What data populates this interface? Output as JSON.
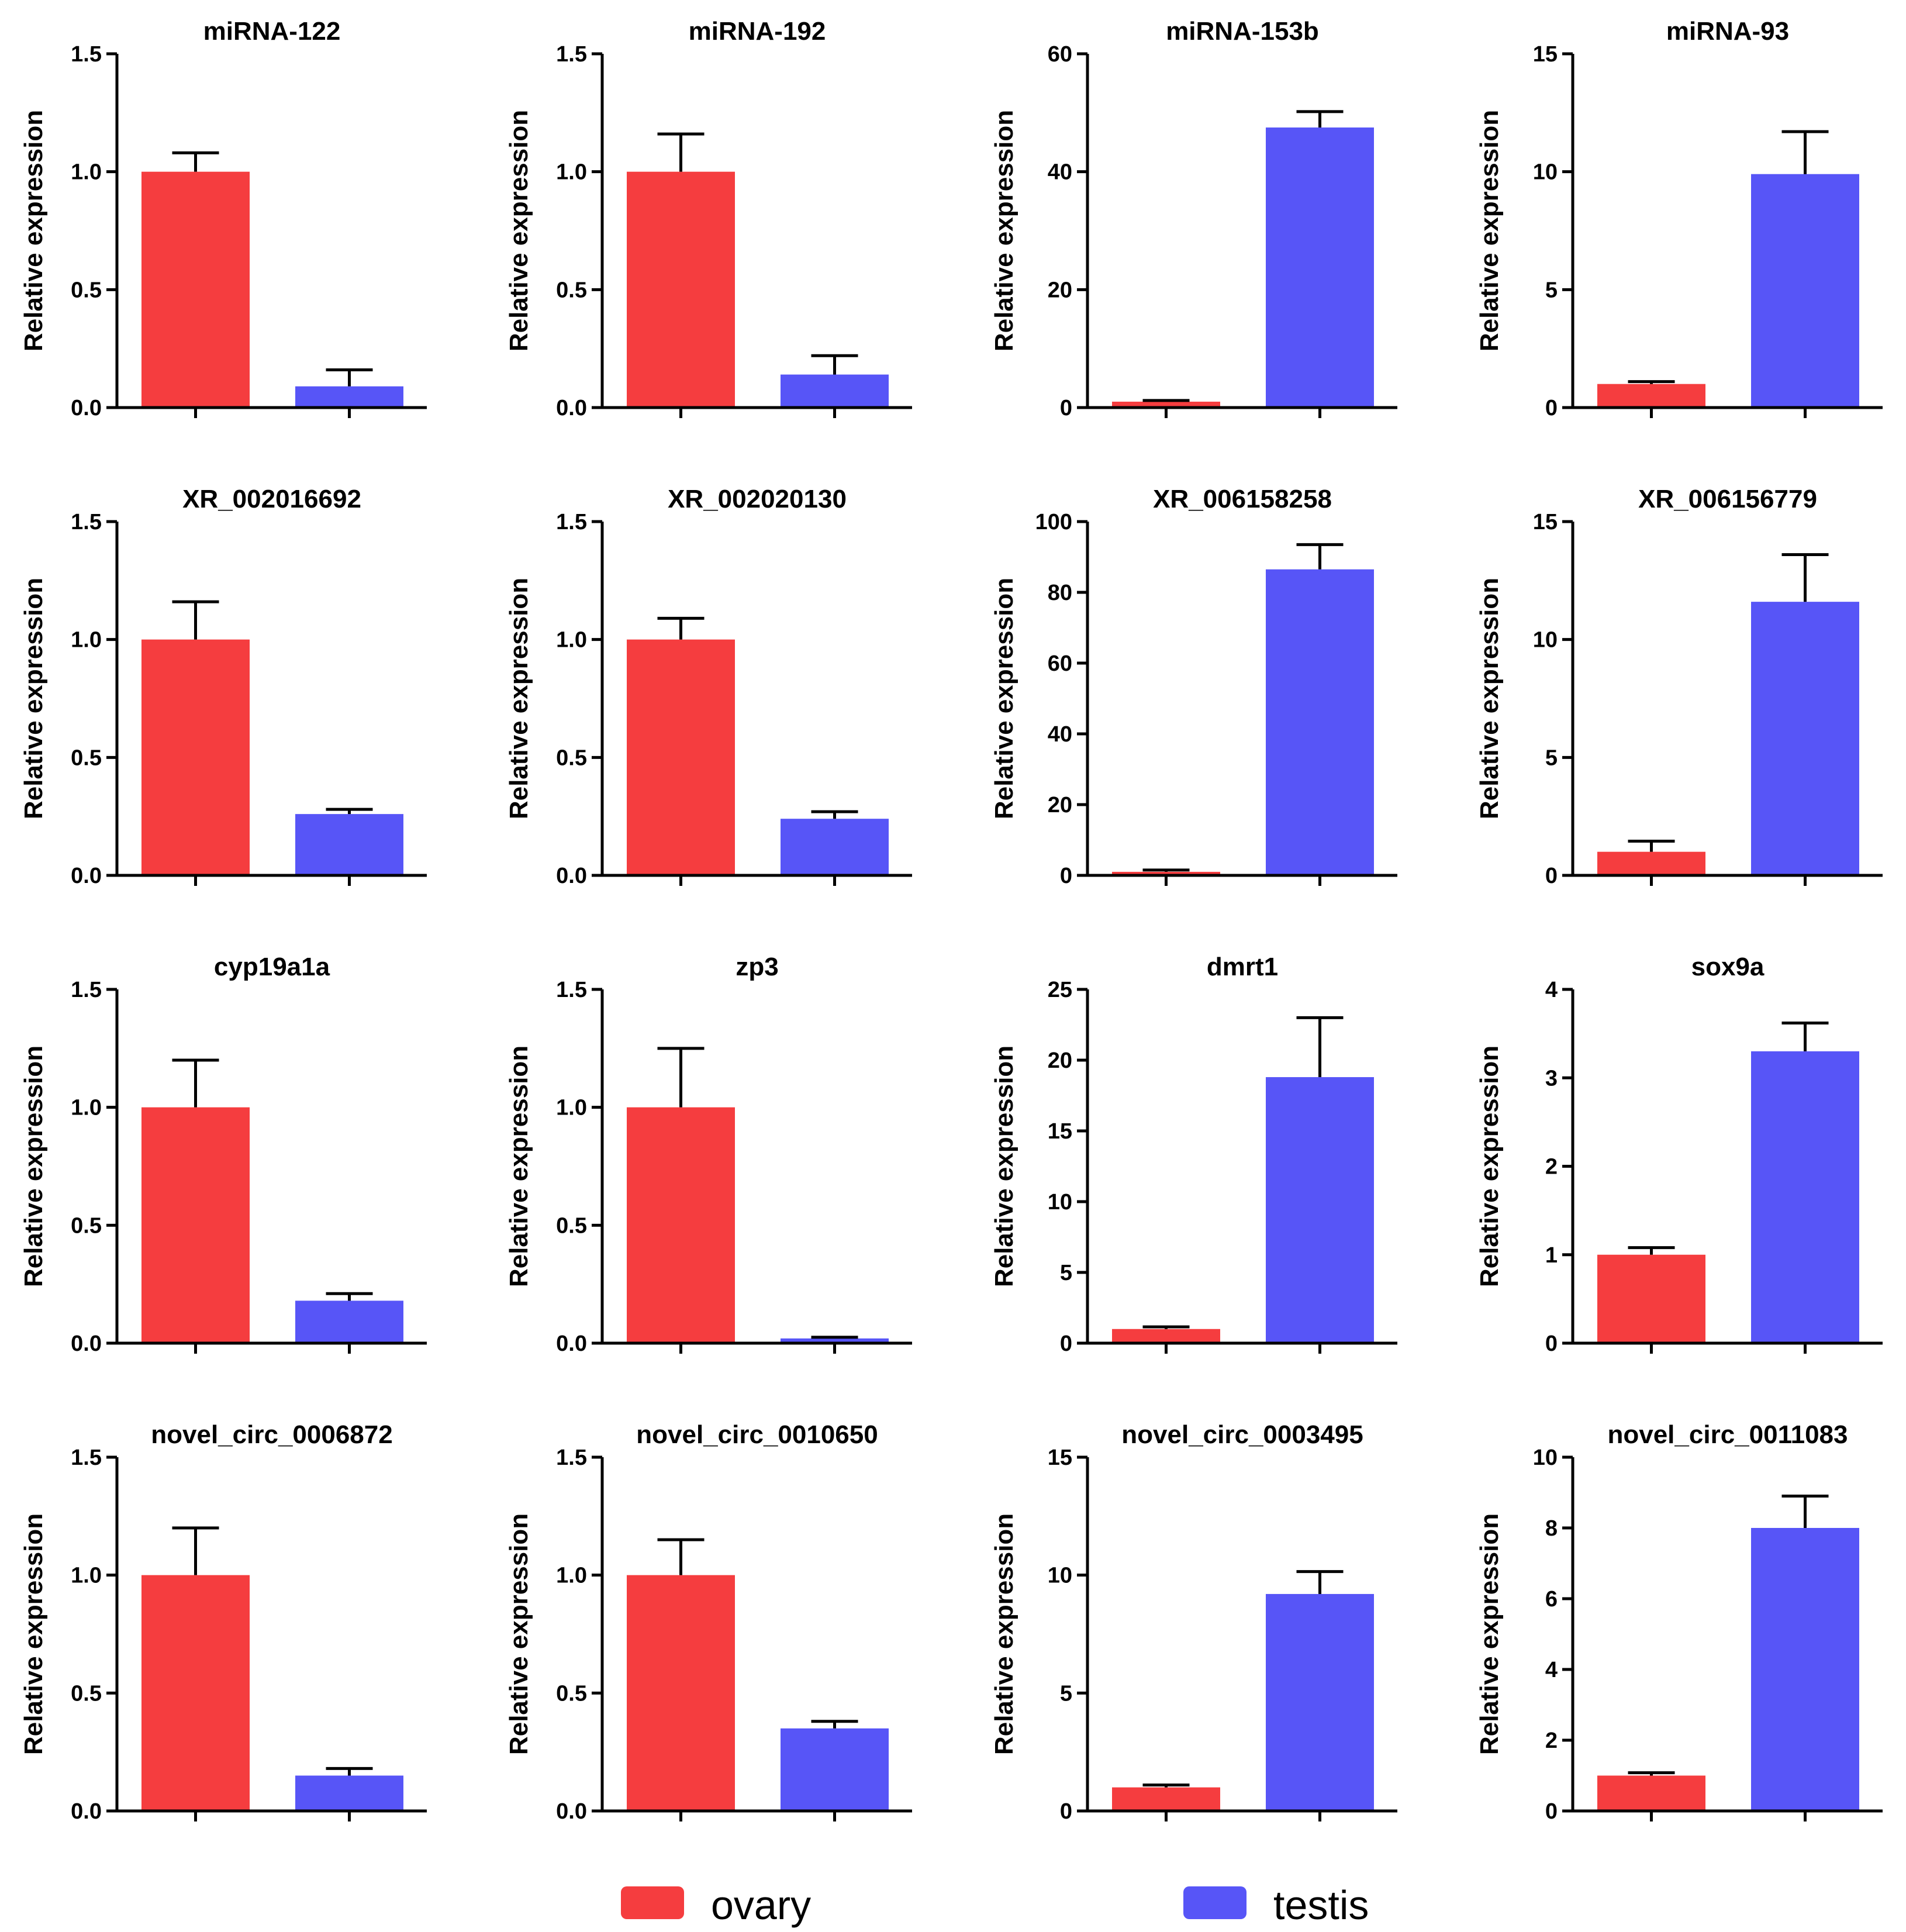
{
  "colors": {
    "ovary": "#f53d3f",
    "testis": "#5755f7",
    "axis": "#000000"
  },
  "legend": [
    {
      "name": "ovary",
      "color": "#f53d3f"
    },
    {
      "name": "testis",
      "color": "#5755f7"
    }
  ],
  "chart_data": [
    {
      "type": "bar",
      "title": "miRNA-122",
      "ylabel": "Relative expression",
      "categories": [
        "ovary",
        "testis"
      ],
      "values": [
        1.0,
        0.09
      ],
      "errors": [
        0.08,
        0.07
      ],
      "ylim": [
        0,
        1.5
      ],
      "yticks": [
        "0.0",
        "0.5",
        "1.0",
        "1.5"
      ],
      "yticks_values": [
        0,
        0.5,
        1.0,
        1.5
      ]
    },
    {
      "type": "bar",
      "title": "miRNA-192",
      "ylabel": "Relative expression",
      "categories": [
        "ovary",
        "testis"
      ],
      "values": [
        1.0,
        0.14
      ],
      "errors": [
        0.16,
        0.08
      ],
      "ylim": [
        0,
        1.5
      ],
      "yticks": [
        "0.0",
        "0.5",
        "1.0",
        "1.5"
      ],
      "yticks_values": [
        0,
        0.5,
        1.0,
        1.5
      ]
    },
    {
      "type": "bar",
      "title": "miRNA-153b",
      "ylabel": "Relative expression",
      "categories": [
        "ovary",
        "testis"
      ],
      "values": [
        1.0,
        47.5
      ],
      "errors": [
        0.2,
        2.7
      ],
      "ylim": [
        0,
        60
      ],
      "yticks": [
        "0",
        "20",
        "40",
        "60"
      ],
      "yticks_values": [
        0,
        20,
        40,
        60
      ]
    },
    {
      "type": "bar",
      "title": "miRNA-93",
      "ylabel": "Relative expression",
      "categories": [
        "ovary",
        "testis"
      ],
      "values": [
        1.0,
        9.9
      ],
      "errors": [
        0.1,
        1.8
      ],
      "ylim": [
        0,
        15
      ],
      "yticks": [
        "0",
        "5",
        "10",
        "15"
      ],
      "yticks_values": [
        0,
        5,
        10,
        15
      ]
    },
    {
      "type": "bar",
      "title": "XR_002016692",
      "ylabel": "Relative expression",
      "categories": [
        "ovary",
        "testis"
      ],
      "values": [
        1.0,
        0.26
      ],
      "errors": [
        0.16,
        0.02
      ],
      "ylim": [
        0,
        1.5
      ],
      "yticks": [
        "0.0",
        "0.5",
        "1.0",
        "1.5"
      ],
      "yticks_values": [
        0,
        0.5,
        1.0,
        1.5
      ]
    },
    {
      "type": "bar",
      "title": "XR_002020130",
      "ylabel": "Relative expression",
      "categories": [
        "ovary",
        "testis"
      ],
      "values": [
        1.0,
        0.24
      ],
      "errors": [
        0.09,
        0.03
      ],
      "ylim": [
        0,
        1.5
      ],
      "yticks": [
        "0.0",
        "0.5",
        "1.0",
        "1.5"
      ],
      "yticks_values": [
        0,
        0.5,
        1.0,
        1.5
      ]
    },
    {
      "type": "bar",
      "title": "XR_006158258",
      "ylabel": "Relative expression",
      "categories": [
        "ovary",
        "testis"
      ],
      "values": [
        1.0,
        86.5
      ],
      "errors": [
        0.5,
        7.0
      ],
      "ylim": [
        0,
        100
      ],
      "yticks": [
        "0",
        "20",
        "40",
        "60",
        "80",
        "100"
      ],
      "yticks_values": [
        0,
        20,
        40,
        60,
        80,
        100
      ]
    },
    {
      "type": "bar",
      "title": "XR_006156779",
      "ylabel": "Relative expression",
      "categories": [
        "ovary",
        "testis"
      ],
      "values": [
        1.0,
        11.6
      ],
      "errors": [
        0.45,
        2.0
      ],
      "ylim": [
        0,
        15
      ],
      "yticks": [
        "0",
        "5",
        "10",
        "15"
      ],
      "yticks_values": [
        0,
        5,
        10,
        15
      ]
    },
    {
      "type": "bar",
      "title": "cyp19a1a",
      "ylabel": "Relative expression",
      "categories": [
        "ovary",
        "testis"
      ],
      "values": [
        1.0,
        0.18
      ],
      "errors": [
        0.2,
        0.03
      ],
      "ylim": [
        0,
        1.5
      ],
      "yticks": [
        "0.0",
        "0.5",
        "1.0",
        "1.5"
      ],
      "yticks_values": [
        0,
        0.5,
        1.0,
        1.5
      ]
    },
    {
      "type": "bar",
      "title": "zp3",
      "ylabel": "Relative expression",
      "categories": [
        "ovary",
        "testis"
      ],
      "values": [
        1.0,
        0.02
      ],
      "errors": [
        0.25,
        0.005
      ],
      "ylim": [
        0,
        1.5
      ],
      "yticks": [
        "0.0",
        "0.5",
        "1.0",
        "1.5"
      ],
      "yticks_values": [
        0,
        0.5,
        1.0,
        1.5
      ]
    },
    {
      "type": "bar",
      "title": "dmrt1",
      "ylabel": "Relative expression",
      "categories": [
        "ovary",
        "testis"
      ],
      "values": [
        1.0,
        18.8
      ],
      "errors": [
        0.15,
        4.2
      ],
      "ylim": [
        0,
        25
      ],
      "yticks": [
        "0",
        "5",
        "10",
        "15",
        "20",
        "25"
      ],
      "yticks_values": [
        0,
        5,
        10,
        15,
        20,
        25
      ]
    },
    {
      "type": "bar",
      "title": "sox9a",
      "ylabel": "Relative expression",
      "categories": [
        "ovary",
        "testis"
      ],
      "values": [
        1.0,
        3.3
      ],
      "errors": [
        0.08,
        0.32
      ],
      "ylim": [
        0,
        4
      ],
      "yticks": [
        "0",
        "1",
        "2",
        "3",
        "4"
      ],
      "yticks_values": [
        0,
        1,
        2,
        3,
        4
      ]
    },
    {
      "type": "bar",
      "title": "novel_circ_0006872",
      "ylabel": "Relative expression",
      "categories": [
        "ovary",
        "testis"
      ],
      "values": [
        1.0,
        0.15
      ],
      "errors": [
        0.2,
        0.03
      ],
      "ylim": [
        0,
        1.5
      ],
      "yticks": [
        "0.0",
        "0.5",
        "1.0",
        "1.5"
      ],
      "yticks_values": [
        0,
        0.5,
        1.0,
        1.5
      ]
    },
    {
      "type": "bar",
      "title": "novel_circ_0010650",
      "ylabel": "Relative expression",
      "categories": [
        "ovary",
        "testis"
      ],
      "values": [
        1.0,
        0.35
      ],
      "errors": [
        0.15,
        0.03
      ],
      "ylim": [
        0,
        1.5
      ],
      "yticks": [
        "0.0",
        "0.5",
        "1.0",
        "1.5"
      ],
      "yticks_values": [
        0,
        0.5,
        1.0,
        1.5
      ]
    },
    {
      "type": "bar",
      "title": "novel_circ_0003495",
      "ylabel": "Relative expression",
      "categories": [
        "ovary",
        "testis"
      ],
      "values": [
        1.0,
        9.2
      ],
      "errors": [
        0.1,
        0.95
      ],
      "ylim": [
        0,
        15
      ],
      "yticks": [
        "0",
        "5",
        "10",
        "15"
      ],
      "yticks_values": [
        0,
        5,
        10,
        15
      ]
    },
    {
      "type": "bar",
      "title": "novel_circ_0011083",
      "ylabel": "Relative expression",
      "categories": [
        "ovary",
        "testis"
      ],
      "values": [
        1.0,
        8.0
      ],
      "errors": [
        0.08,
        0.9
      ],
      "ylim": [
        0,
        10
      ],
      "yticks": [
        "0",
        "2",
        "4",
        "6",
        "8",
        "10"
      ],
      "yticks_values": [
        0,
        2,
        4,
        6,
        8,
        10
      ]
    }
  ]
}
